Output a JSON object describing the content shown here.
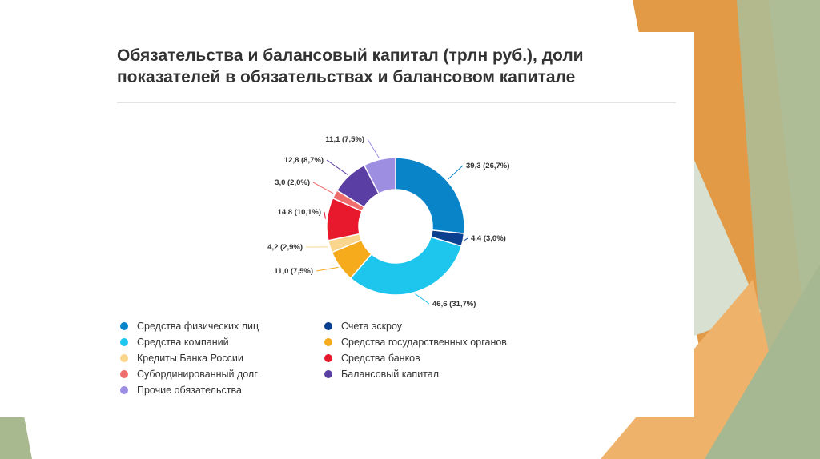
{
  "title_line1": "Обязательства и балансовый капитал (трлн руб.), доли",
  "title_line2": "показателей в обязательствах и балансовом капитале",
  "chart_data": {
    "type": "pie",
    "donut": true,
    "title": "Обязательства и балансовый капитал (трлн руб.), доли показателей в обязательствах и балансовом капитале",
    "categories": [
      "Средства физических лиц",
      "Счета эскроу",
      "Средства компаний",
      "Средства государственных органов",
      "Кредиты Банка России",
      "Средства банков",
      "Субординированный долг",
      "Балансовый капитал",
      "Прочие обязательства"
    ],
    "values": [
      39.3,
      4.4,
      46.6,
      11.0,
      4.2,
      14.8,
      3.0,
      12.8,
      11.1
    ],
    "labels": [
      "39,3 (26,7%)",
      "4,4 (3,0%)",
      "46,6 (31,7%)",
      "11,0 (7,5%)",
      "4,2 (2,9%)",
      "14,8 (10,1%)",
      "3,0 (2,0%)",
      "12,8 (8,7%)",
      "11,1 (7,5%)"
    ],
    "colors": [
      "#0a84c8",
      "#0b3f8f",
      "#1ec6ee",
      "#f5ab1b",
      "#fad58e",
      "#e8192c",
      "#f06d6d",
      "#5a3ea3",
      "#9d8ee2"
    ],
    "legend_placement": "bottom",
    "legend_order": [
      0,
      1,
      2,
      3,
      4,
      5,
      6,
      7,
      8
    ]
  }
}
